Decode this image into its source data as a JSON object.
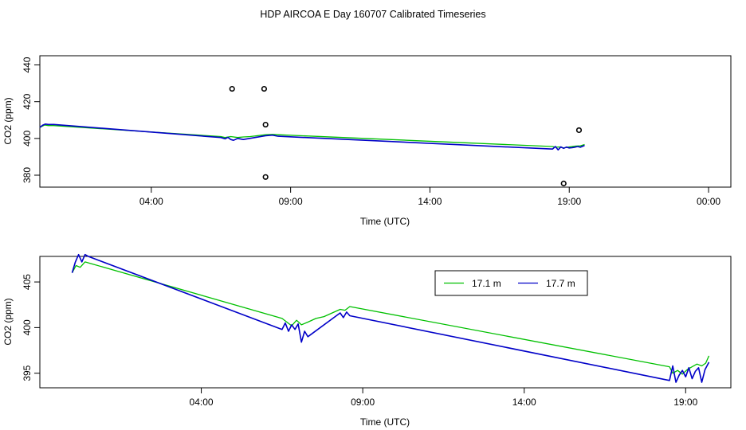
{
  "title": "HDP AIRCOA E  Day 160707  Calibrated Timeseries",
  "colors": {
    "green": "#00c000",
    "blue": "#0000c8",
    "axis": "#000000",
    "background": "#ffffff"
  },
  "chart_data": [
    {
      "type": "line",
      "panel": "top",
      "xlabel": "Time (UTC)",
      "ylabel": "CO2 (ppm)",
      "xlim": [
        0.0,
        24.8
      ],
      "ylim": [
        373.5,
        445.0
      ],
      "xticks": [
        4,
        9,
        14,
        19,
        24
      ],
      "xtick_labels": [
        "04:00",
        "09:00",
        "14:00",
        "19:00",
        "00:00"
      ],
      "yticks": [
        380,
        400,
        420,
        440
      ],
      "ytick_labels": [
        "380",
        "400",
        "420",
        "440"
      ],
      "series": [
        {
          "name": "17.1 m",
          "color": "#00c000",
          "x": [
            0.0,
            0.17,
            0.3,
            0.5,
            6.5,
            6.65,
            6.85,
            7.1,
            7.3,
            7.55,
            8.1,
            8.35,
            8.55,
            18.4,
            18.5,
            18.65,
            18.8,
            19.0,
            19.2,
            19.4,
            19.55
          ],
          "y": [
            406.0,
            407.3,
            407.0,
            407.0,
            401.0,
            400.5,
            401.0,
            400.5,
            400.8,
            401.0,
            402.0,
            402.2,
            402.0,
            395.6,
            395.2,
            395.4,
            394.8,
            395.4,
            395.8,
            396.0,
            396.7
          ]
        },
        {
          "name": "17.7 m",
          "color": "#0000c8",
          "x": [
            0.0,
            0.1,
            0.2,
            0.3,
            0.5,
            6.5,
            6.65,
            6.75,
            6.85,
            6.95,
            7.1,
            7.3,
            8.1,
            8.35,
            8.55,
            18.4,
            18.5,
            18.6,
            18.7,
            18.8,
            18.9,
            19.0,
            19.1,
            19.2,
            19.3,
            19.4,
            19.55
          ],
          "y": [
            406.0,
            407.2,
            407.8,
            407.6,
            407.6,
            400.5,
            399.8,
            400.6,
            399.4,
            399.0,
            400.0,
            399.4,
            401.5,
            401.8,
            401.2,
            394.2,
            395.6,
            393.8,
            395.4,
            394.6,
            395.3,
            394.8,
            395.0,
            395.2,
            395.6,
            395.2,
            396.2
          ]
        }
      ],
      "points": {
        "marker": "open-circle",
        "x": [
          6.9,
          8.05,
          8.1,
          8.1,
          18.8,
          19.35
        ],
        "y": [
          427.0,
          427.0,
          407.5,
          379.0,
          375.5,
          404.5
        ]
      }
    },
    {
      "type": "line",
      "panel": "bottom",
      "xlabel": "Time (UTC)",
      "ylabel": "CO2 (ppm)",
      "xlim": [
        -1.0,
        20.4
      ],
      "ylim": [
        393.4,
        407.8
      ],
      "xticks": [
        4,
        9,
        14,
        19
      ],
      "xtick_labels": [
        "04:00",
        "09:00",
        "14:00",
        "19:00"
      ],
      "yticks": [
        395,
        400,
        405
      ],
      "ytick_labels": [
        "395",
        "400",
        "405"
      ],
      "legend": {
        "position": "top-right",
        "entries": [
          "17.1 m",
          "17.7 m"
        ]
      },
      "series": [
        {
          "name": "17.1 m",
          "color": "#00c000",
          "x": [
            0.0,
            0.12,
            0.25,
            0.4,
            0.6,
            6.5,
            6.65,
            6.8,
            6.95,
            7.1,
            7.3,
            7.55,
            7.8,
            8.3,
            8.45,
            8.6,
            18.5,
            18.6,
            18.75,
            18.9,
            19.05,
            19.2,
            19.35,
            19.5,
            19.62,
            19.72
          ],
          "y": [
            406.0,
            406.8,
            406.6,
            407.2,
            407.0,
            401.0,
            400.6,
            400.2,
            400.8,
            400.3,
            400.6,
            401.0,
            401.2,
            402.0,
            401.9,
            402.3,
            395.7,
            395.0,
            395.3,
            394.9,
            395.4,
            395.7,
            396.0,
            395.8,
            396.1,
            396.9
          ]
        },
        {
          "name": "17.7 m",
          "color": "#0000c8",
          "x": [
            0.0,
            0.1,
            0.2,
            0.3,
            0.4,
            0.5,
            6.5,
            6.6,
            6.7,
            6.8,
            6.9,
            7.0,
            7.1,
            7.2,
            7.3,
            8.3,
            8.4,
            8.5,
            8.6,
            18.5,
            18.6,
            18.7,
            18.8,
            18.9,
            19.0,
            19.1,
            19.2,
            19.3,
            19.4,
            19.5,
            19.6,
            19.72
          ],
          "y": [
            406.0,
            407.2,
            408.0,
            407.2,
            408.0,
            407.8,
            399.8,
            400.5,
            399.6,
            400.3,
            399.8,
            400.4,
            398.4,
            399.6,
            399.0,
            401.6,
            401.1,
            401.7,
            401.3,
            394.2,
            395.8,
            394.0,
            394.8,
            395.3,
            394.6,
            395.6,
            394.4,
            395.2,
            395.6,
            394.0,
            395.4,
            396.2
          ]
        }
      ]
    }
  ]
}
